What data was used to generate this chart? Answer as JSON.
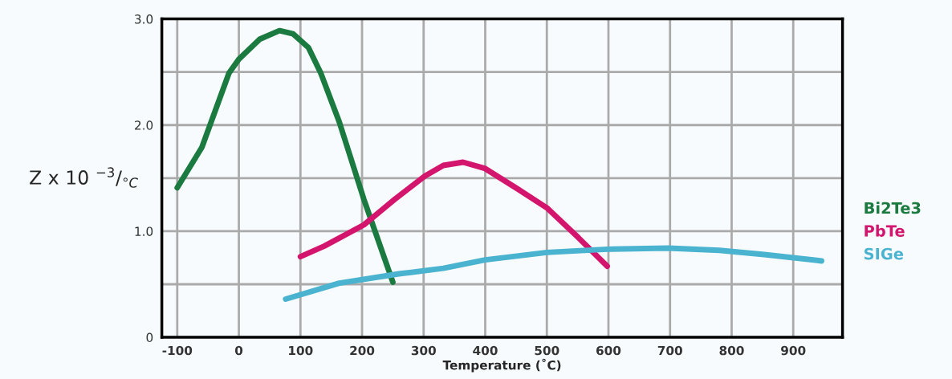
{
  "chart_data": {
    "type": "line",
    "xlabel": "Temperature (˚C)",
    "ylabel": "Z x 10 $^{−3}$/$_{°C}$",
    "xlim": [
      -125,
      980
    ],
    "xticks": [
      -100,
      0,
      100,
      200,
      300,
      400,
      500,
      600,
      700,
      800,
      900
    ],
    "ylim": [
      0,
      3
    ],
    "yticks": [
      {
        "value": 0,
        "label": "0"
      },
      {
        "value": 0.5,
        "label": null
      },
      {
        "value": 1,
        "label": "1.0"
      },
      {
        "value": 1.5,
        "label": null
      },
      {
        "value": 2,
        "label": "2.0"
      },
      {
        "value": 2.5,
        "label": null
      },
      {
        "value": 3,
        "label": "3.0"
      }
    ],
    "grid": true,
    "legend": "right",
    "marker": "none",
    "line_style": "solid",
    "series": [
      {
        "name": "Bi2Te3",
        "color": "#1a7a40",
        "x": [
          -100,
          -60,
          -16,
          0,
          34,
          66,
          88,
          113,
          133,
          163,
          203,
          250
        ],
        "values": [
          1.41,
          1.79,
          2.49,
          2.62,
          2.81,
          2.89,
          2.86,
          2.73,
          2.49,
          2.03,
          1.3,
          0.52
        ]
      },
      {
        "name": "PbTe",
        "color": "#d4156e",
        "x": [
          100,
          139,
          203,
          253,
          302,
          332,
          364,
          400,
          452,
          500,
          551,
          598
        ],
        "values": [
          0.76,
          0.86,
          1.06,
          1.3,
          1.52,
          1.62,
          1.65,
          1.59,
          1.4,
          1.22,
          0.94,
          0.67
        ]
      },
      {
        "name": "SIGe",
        "color": "#4ab3cf",
        "x": [
          76,
          163,
          262,
          332,
          400,
          500,
          598,
          697,
          780,
          853,
          946
        ],
        "values": [
          0.36,
          0.51,
          0.6,
          0.65,
          0.73,
          0.8,
          0.83,
          0.84,
          0.82,
          0.78,
          0.72
        ]
      }
    ]
  }
}
